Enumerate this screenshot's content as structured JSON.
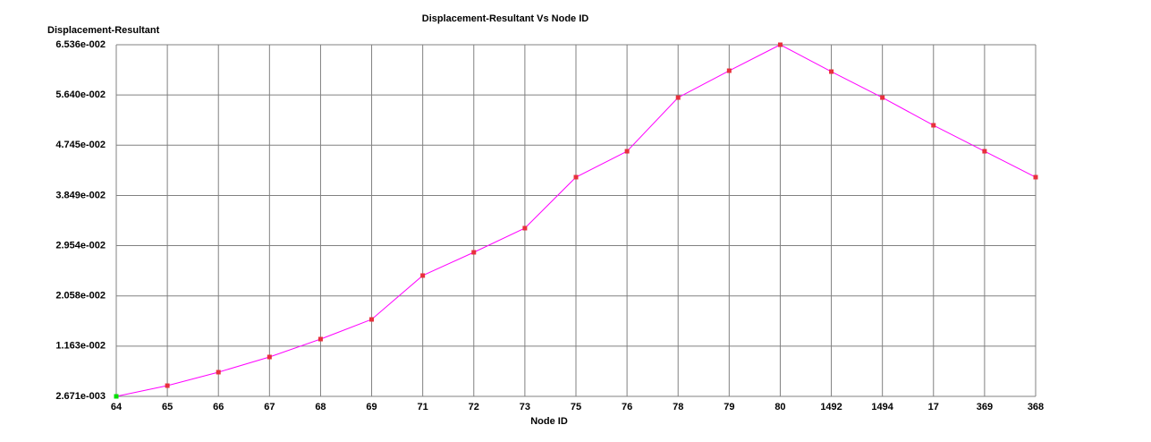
{
  "chart_data": {
    "type": "line",
    "title": "Displacement-Resultant Vs Node ID",
    "y_label": "Displacement-Resultant",
    "x_label": "Node ID",
    "categories": [
      "64",
      "65",
      "66",
      "67",
      "68",
      "69",
      "71",
      "72",
      "73",
      "75",
      "76",
      "78",
      "79",
      "80",
      "1492",
      "1494",
      "17",
      "369",
      "368"
    ],
    "values": [
      0.002671,
      0.00458,
      0.00698,
      0.00969,
      0.01288,
      0.01639,
      0.02421,
      0.02835,
      0.03266,
      0.04175,
      0.04637,
      0.05594,
      0.06073,
      0.06536,
      0.06057,
      0.05594,
      0.051,
      0.04637,
      0.04175
    ],
    "color": "#ff00ff",
    "marker_color": "#e8303c",
    "ylim": [
      0.002671,
      0.06536
    ],
    "yticks": [
      {
        "value": 0.002671,
        "label": "2.671e-003"
      },
      {
        "value": 0.01163,
        "label": "1.163e-002"
      },
      {
        "value": 0.02058,
        "label": "2.058e-002"
      },
      {
        "value": 0.02954,
        "label": "2.954e-002"
      },
      {
        "value": 0.03849,
        "label": "3.849e-002"
      },
      {
        "value": 0.04745,
        "label": "4.745e-002"
      },
      {
        "value": 0.0564,
        "label": "5.640e-002"
      },
      {
        "value": 0.06536,
        "label": "6.536e-002"
      }
    ],
    "grid": true
  }
}
